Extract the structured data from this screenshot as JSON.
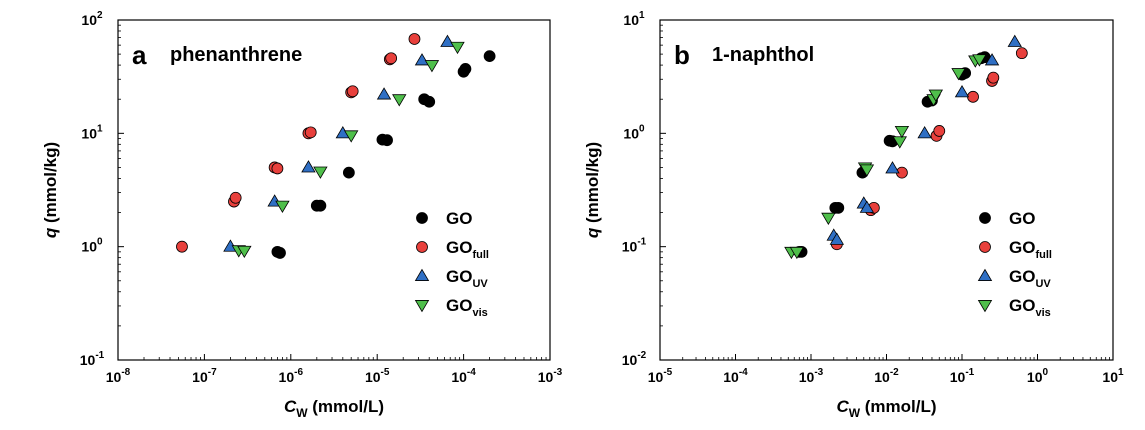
{
  "markers": {
    "GO": {
      "shape": "circle",
      "fill": "#000000"
    },
    "GO_full": {
      "shape": "circle",
      "fill": "#e8403c"
    },
    "GO_UV": {
      "shape": "triangle-up",
      "fill": "#2f6fc4"
    },
    "GO_vis": {
      "shape": "triangle-down",
      "fill": "#4fbf4b"
    }
  },
  "chart_data": [
    {
      "type": "scatter",
      "panel_label": "a",
      "compound": "phenanthrene",
      "xlabel_main": "C",
      "xlabel_sub": "W",
      "xlabel_rest": " (mmol/L)",
      "ylabel_main": "q",
      "ylabel_rest": " (mmol/kg)",
      "xscale": "log",
      "yscale": "log",
      "xlim": [
        1e-08,
        0.001
      ],
      "ylim": [
        0.1,
        100
      ],
      "x_ticks": [
        {
          "value": 1e-08,
          "base": "10",
          "exp": "-8"
        },
        {
          "value": 1e-07,
          "base": "10",
          "exp": "-7"
        },
        {
          "value": 1e-06,
          "base": "10",
          "exp": "-6"
        },
        {
          "value": 1e-05,
          "base": "10",
          "exp": "-5"
        },
        {
          "value": 0.0001,
          "base": "10",
          "exp": "-4"
        },
        {
          "value": 0.001,
          "base": "10",
          "exp": "-3"
        }
      ],
      "y_ticks": [
        {
          "value": 0.1,
          "base": "10",
          "exp": "-1"
        },
        {
          "value": 1,
          "base": "10",
          "exp": "0"
        },
        {
          "value": 10,
          "base": "10",
          "exp": "1"
        },
        {
          "value": 100,
          "base": "10",
          "exp": "2"
        }
      ],
      "legend": {
        "placement": "bottom-right"
      },
      "series": [
        {
          "name": "GO",
          "name_main": "GO",
          "name_sub": "",
          "marker": "GO",
          "x": [
            7e-07,
            7.5e-07,
            2e-06,
            2.2e-06,
            4.7e-06,
            1.15e-05,
            1.3e-05,
            3.5e-05,
            4e-05,
            0.0001,
            0.000105,
            0.0002
          ],
          "y": [
            0.9,
            0.88,
            2.3,
            2.3,
            4.5,
            8.8,
            8.7,
            20,
            19,
            35,
            37,
            48
          ]
        },
        {
          "name": "GOfull",
          "name_main": "GO",
          "name_sub": "full",
          "marker": "GO_full",
          "x": [
            5.5e-08,
            2.2e-07,
            2.3e-07,
            6.5e-07,
            7e-07,
            1.6e-06,
            1.7e-06,
            5e-06,
            5.2e-06,
            1.4e-05,
            1.45e-05,
            2.7e-05
          ],
          "y": [
            1.0,
            2.5,
            2.7,
            5.0,
            4.9,
            10,
            10.2,
            23,
            23.5,
            45,
            46,
            68
          ]
        },
        {
          "name": "GOUV",
          "name_main": "GO",
          "name_sub": "UV",
          "marker": "GO_UV",
          "x": [
            2e-07,
            6.5e-07,
            1.6e-06,
            4e-06,
            1.2e-05,
            3.3e-05,
            6.5e-05
          ],
          "y": [
            1.0,
            2.5,
            5.0,
            10,
            22,
            44,
            64
          ]
        },
        {
          "name": "GOvis",
          "name_main": "GO",
          "name_sub": "vis",
          "marker": "GO_vis",
          "x": [
            2.5e-07,
            2.9e-07,
            8e-07,
            2.2e-06,
            5e-06,
            1.8e-05,
            4.3e-05,
            8.5e-05
          ],
          "y": [
            0.93,
            0.92,
            2.3,
            4.6,
            9.6,
            20,
            40,
            58
          ]
        }
      ]
    },
    {
      "type": "scatter",
      "panel_label": "b",
      "compound": "1-naphthol",
      "xlabel_main": "C",
      "xlabel_sub": "W",
      "xlabel_rest": " (mmol/L)",
      "ylabel_main": "q",
      "ylabel_rest": " (mmol/kg)",
      "xscale": "log",
      "yscale": "log",
      "xlim": [
        1e-05,
        10
      ],
      "ylim": [
        0.01,
        10
      ],
      "x_ticks": [
        {
          "value": 1e-05,
          "base": "10",
          "exp": "-5"
        },
        {
          "value": 0.0001,
          "base": "10",
          "exp": "-4"
        },
        {
          "value": 0.001,
          "base": "10",
          "exp": "-3"
        },
        {
          "value": 0.01,
          "base": "10",
          "exp": "-2"
        },
        {
          "value": 0.1,
          "base": "10",
          "exp": "-1"
        },
        {
          "value": 1,
          "base": "10",
          "exp": "0"
        },
        {
          "value": 10,
          "base": "10",
          "exp": "1"
        }
      ],
      "y_ticks": [
        {
          "value": 0.01,
          "base": "10",
          "exp": "-2"
        },
        {
          "value": 0.1,
          "base": "10",
          "exp": "-1"
        },
        {
          "value": 1,
          "base": "10",
          "exp": "0"
        },
        {
          "value": 10,
          "base": "10",
          "exp": "1"
        }
      ],
      "legend": {
        "placement": "bottom-right"
      },
      "series": [
        {
          "name": "GO",
          "name_main": "GO",
          "name_sub": "",
          "marker": "GO",
          "x": [
            0.0007,
            0.00075,
            0.0021,
            0.0023,
            0.0048,
            0.011,
            0.012,
            0.035,
            0.04,
            0.1,
            0.11,
            0.18,
            0.2
          ],
          "y": [
            0.09,
            0.09,
            0.22,
            0.22,
            0.45,
            0.86,
            0.85,
            1.9,
            1.95,
            3.3,
            3.4,
            4.6,
            4.7
          ]
        },
        {
          "name": "GOfull",
          "name_main": "GO",
          "name_sub": "full",
          "marker": "GO_full",
          "x": [
            0.0022,
            0.0062,
            0.0068,
            0.016,
            0.046,
            0.05,
            0.14,
            0.25,
            0.26,
            0.62
          ],
          "y": [
            0.105,
            0.21,
            0.22,
            0.45,
            0.95,
            1.05,
            2.1,
            2.9,
            3.1,
            5.1
          ]
        },
        {
          "name": "GOUV",
          "name_main": "GO",
          "name_sub": "UV",
          "marker": "GO_UV",
          "x": [
            0.002,
            0.0022,
            0.005,
            0.0055,
            0.012,
            0.032,
            0.1,
            0.25,
            0.5
          ],
          "y": [
            0.125,
            0.115,
            0.24,
            0.22,
            0.49,
            1.0,
            2.3,
            4.4,
            6.4
          ]
        },
        {
          "name": "GOvis",
          "name_main": "GO",
          "name_sub": "vis",
          "marker": "GO_vis",
          "x": [
            0.00055,
            0.00065,
            0.0017,
            0.0052,
            0.0055,
            0.015,
            0.016,
            0.042,
            0.045,
            0.09,
            0.15,
            0.17
          ],
          "y": [
            0.09,
            0.09,
            0.18,
            0.5,
            0.48,
            0.85,
            1.05,
            2.0,
            2.2,
            3.4,
            4.4,
            4.5
          ]
        }
      ]
    }
  ]
}
